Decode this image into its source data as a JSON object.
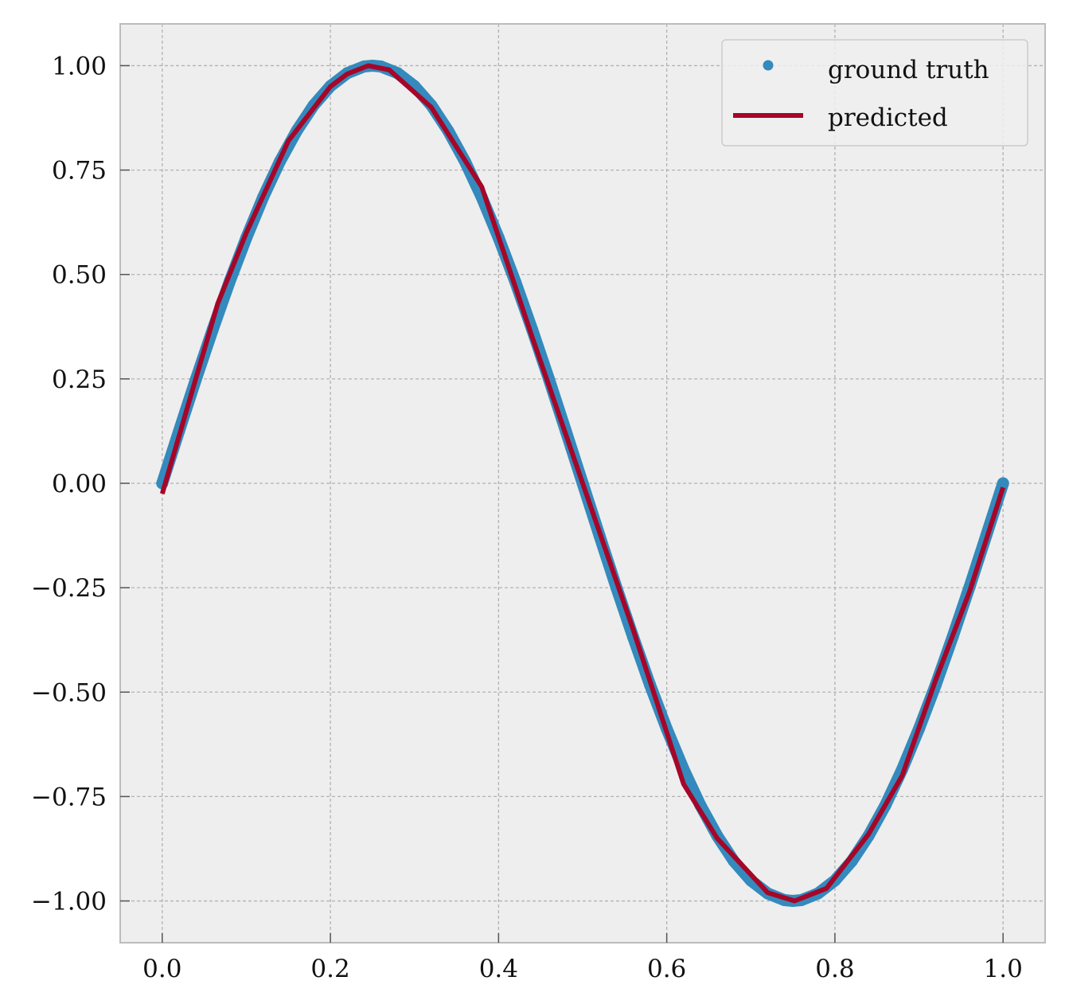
{
  "chart_data": {
    "type": "line",
    "title": "",
    "xlabel": "",
    "ylabel": "",
    "xlim": [
      -0.05,
      1.05
    ],
    "ylim": [
      -1.1,
      1.1
    ],
    "x_ticks": [
      0.0,
      0.2,
      0.4,
      0.6,
      0.8,
      1.0
    ],
    "x_tick_labels": [
      "0.0",
      "0.2",
      "0.4",
      "0.6",
      "0.8",
      "1.0"
    ],
    "y_ticks": [
      1.0,
      0.75,
      0.5,
      0.25,
      0.0,
      -0.25,
      -0.5,
      -0.75,
      -1.0
    ],
    "y_tick_labels": [
      "1.00",
      "0.75",
      "0.50",
      "0.25",
      "0.00",
      "−0.25",
      "−0.50",
      "−0.75",
      "−1.00"
    ],
    "grid": true,
    "legend_position": "top-right",
    "series": [
      {
        "name": "ground truth",
        "kind": "scatter",
        "color": "#348ABD",
        "x": [
          0.0,
          0.02,
          0.04,
          0.06,
          0.08,
          0.1,
          0.12,
          0.14,
          0.16,
          0.18,
          0.2,
          0.22,
          0.24,
          0.25,
          0.26,
          0.28,
          0.3,
          0.32,
          0.34,
          0.36,
          0.38,
          0.4,
          0.42,
          0.44,
          0.46,
          0.48,
          0.5,
          0.52,
          0.54,
          0.56,
          0.58,
          0.6,
          0.62,
          0.64,
          0.66,
          0.68,
          0.7,
          0.72,
          0.74,
          0.75,
          0.76,
          0.78,
          0.8,
          0.82,
          0.84,
          0.86,
          0.88,
          0.9,
          0.92,
          0.94,
          0.96,
          0.98,
          1.0
        ],
        "y": [
          0.0,
          0.125,
          0.249,
          0.368,
          0.482,
          0.588,
          0.685,
          0.771,
          0.844,
          0.905,
          0.951,
          0.982,
          0.998,
          1.0,
          0.998,
          0.982,
          0.951,
          0.905,
          0.844,
          0.771,
          0.685,
          0.588,
          0.482,
          0.368,
          0.249,
          0.125,
          0.0,
          -0.125,
          -0.249,
          -0.368,
          -0.482,
          -0.588,
          -0.685,
          -0.771,
          -0.844,
          -0.905,
          -0.951,
          -0.982,
          -0.998,
          -1.0,
          -0.998,
          -0.982,
          -0.951,
          -0.905,
          -0.844,
          -0.771,
          -0.685,
          -0.588,
          -0.482,
          -0.368,
          -0.249,
          -0.125,
          0.0
        ]
      },
      {
        "name": "predicted",
        "kind": "line",
        "color": "#A60628",
        "x": [
          0.0,
          0.066,
          0.1,
          0.15,
          0.2,
          0.22,
          0.245,
          0.27,
          0.32,
          0.38,
          0.44,
          0.5,
          0.56,
          0.62,
          0.66,
          0.72,
          0.752,
          0.79,
          0.84,
          0.88,
          0.92,
          0.96,
          1.0
        ],
        "y": [
          -0.025,
          0.43,
          0.6,
          0.82,
          0.95,
          0.98,
          1.0,
          0.99,
          0.9,
          0.71,
          0.35,
          0.0,
          -0.35,
          -0.72,
          -0.85,
          -0.98,
          -1.0,
          -0.97,
          -0.84,
          -0.7,
          -0.47,
          -0.26,
          -0.01
        ]
      }
    ]
  }
}
